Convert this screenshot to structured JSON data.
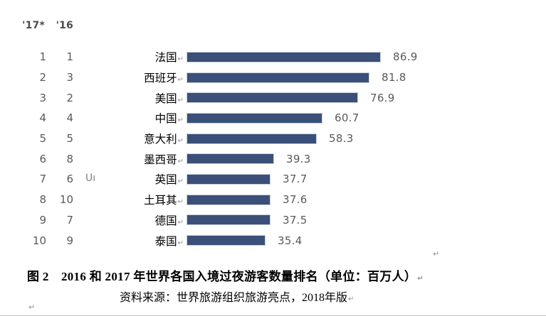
{
  "chart_data": {
    "type": "bar",
    "title": "图 2　2016 和 2017 年世界各国入境过夜游客数量排名（单位：百万人）",
    "source": "资料来源：世界旅游组织旅游亮点，2018年版",
    "unit": "百万人",
    "rank_headers": [
      "'17*",
      "'16"
    ],
    "xlim": [
      0,
      90
    ],
    "bar_color": "#3a5078",
    "bar_border_color": "#c7d0dc",
    "rows": [
      {
        "rank17": "1",
        "rank16": "1",
        "country": "法国",
        "value": 86.9,
        "remnant": ""
      },
      {
        "rank17": "2",
        "rank16": "3",
        "country": "西班牙",
        "value": 81.8,
        "remnant": ""
      },
      {
        "rank17": "3",
        "rank16": "2",
        "country": "美国",
        "value": 76.9,
        "remnant": ""
      },
      {
        "rank17": "4",
        "rank16": "4",
        "country": "中国",
        "value": 60.7,
        "remnant": ""
      },
      {
        "rank17": "5",
        "rank16": "5",
        "country": "意大利",
        "value": 58.3,
        "remnant": ""
      },
      {
        "rank17": "6",
        "rank16": "8",
        "country": "墨西哥",
        "value": 39.3,
        "remnant": ""
      },
      {
        "rank17": "7",
        "rank16": "6",
        "country": "英国",
        "value": 37.7,
        "remnant": "Uı"
      },
      {
        "rank17": "8",
        "rank16": "10",
        "country": "土耳其",
        "value": 37.6,
        "remnant": ""
      },
      {
        "rank17": "9",
        "rank16": "7",
        "country": "德国",
        "value": 37.5,
        "remnant": ""
      },
      {
        "rank17": "10",
        "rank16": "9",
        "country": "泰国",
        "value": 35.4,
        "remnant": ""
      }
    ]
  },
  "caption": {
    "title": "图 2　2016 和 2017 年世界各国入境过夜游客数量排名（单位：百万人）",
    "source": "资料来源：世界旅游组织旅游亮点，2018年版"
  },
  "marks": {
    "pilcrow": "↵"
  }
}
